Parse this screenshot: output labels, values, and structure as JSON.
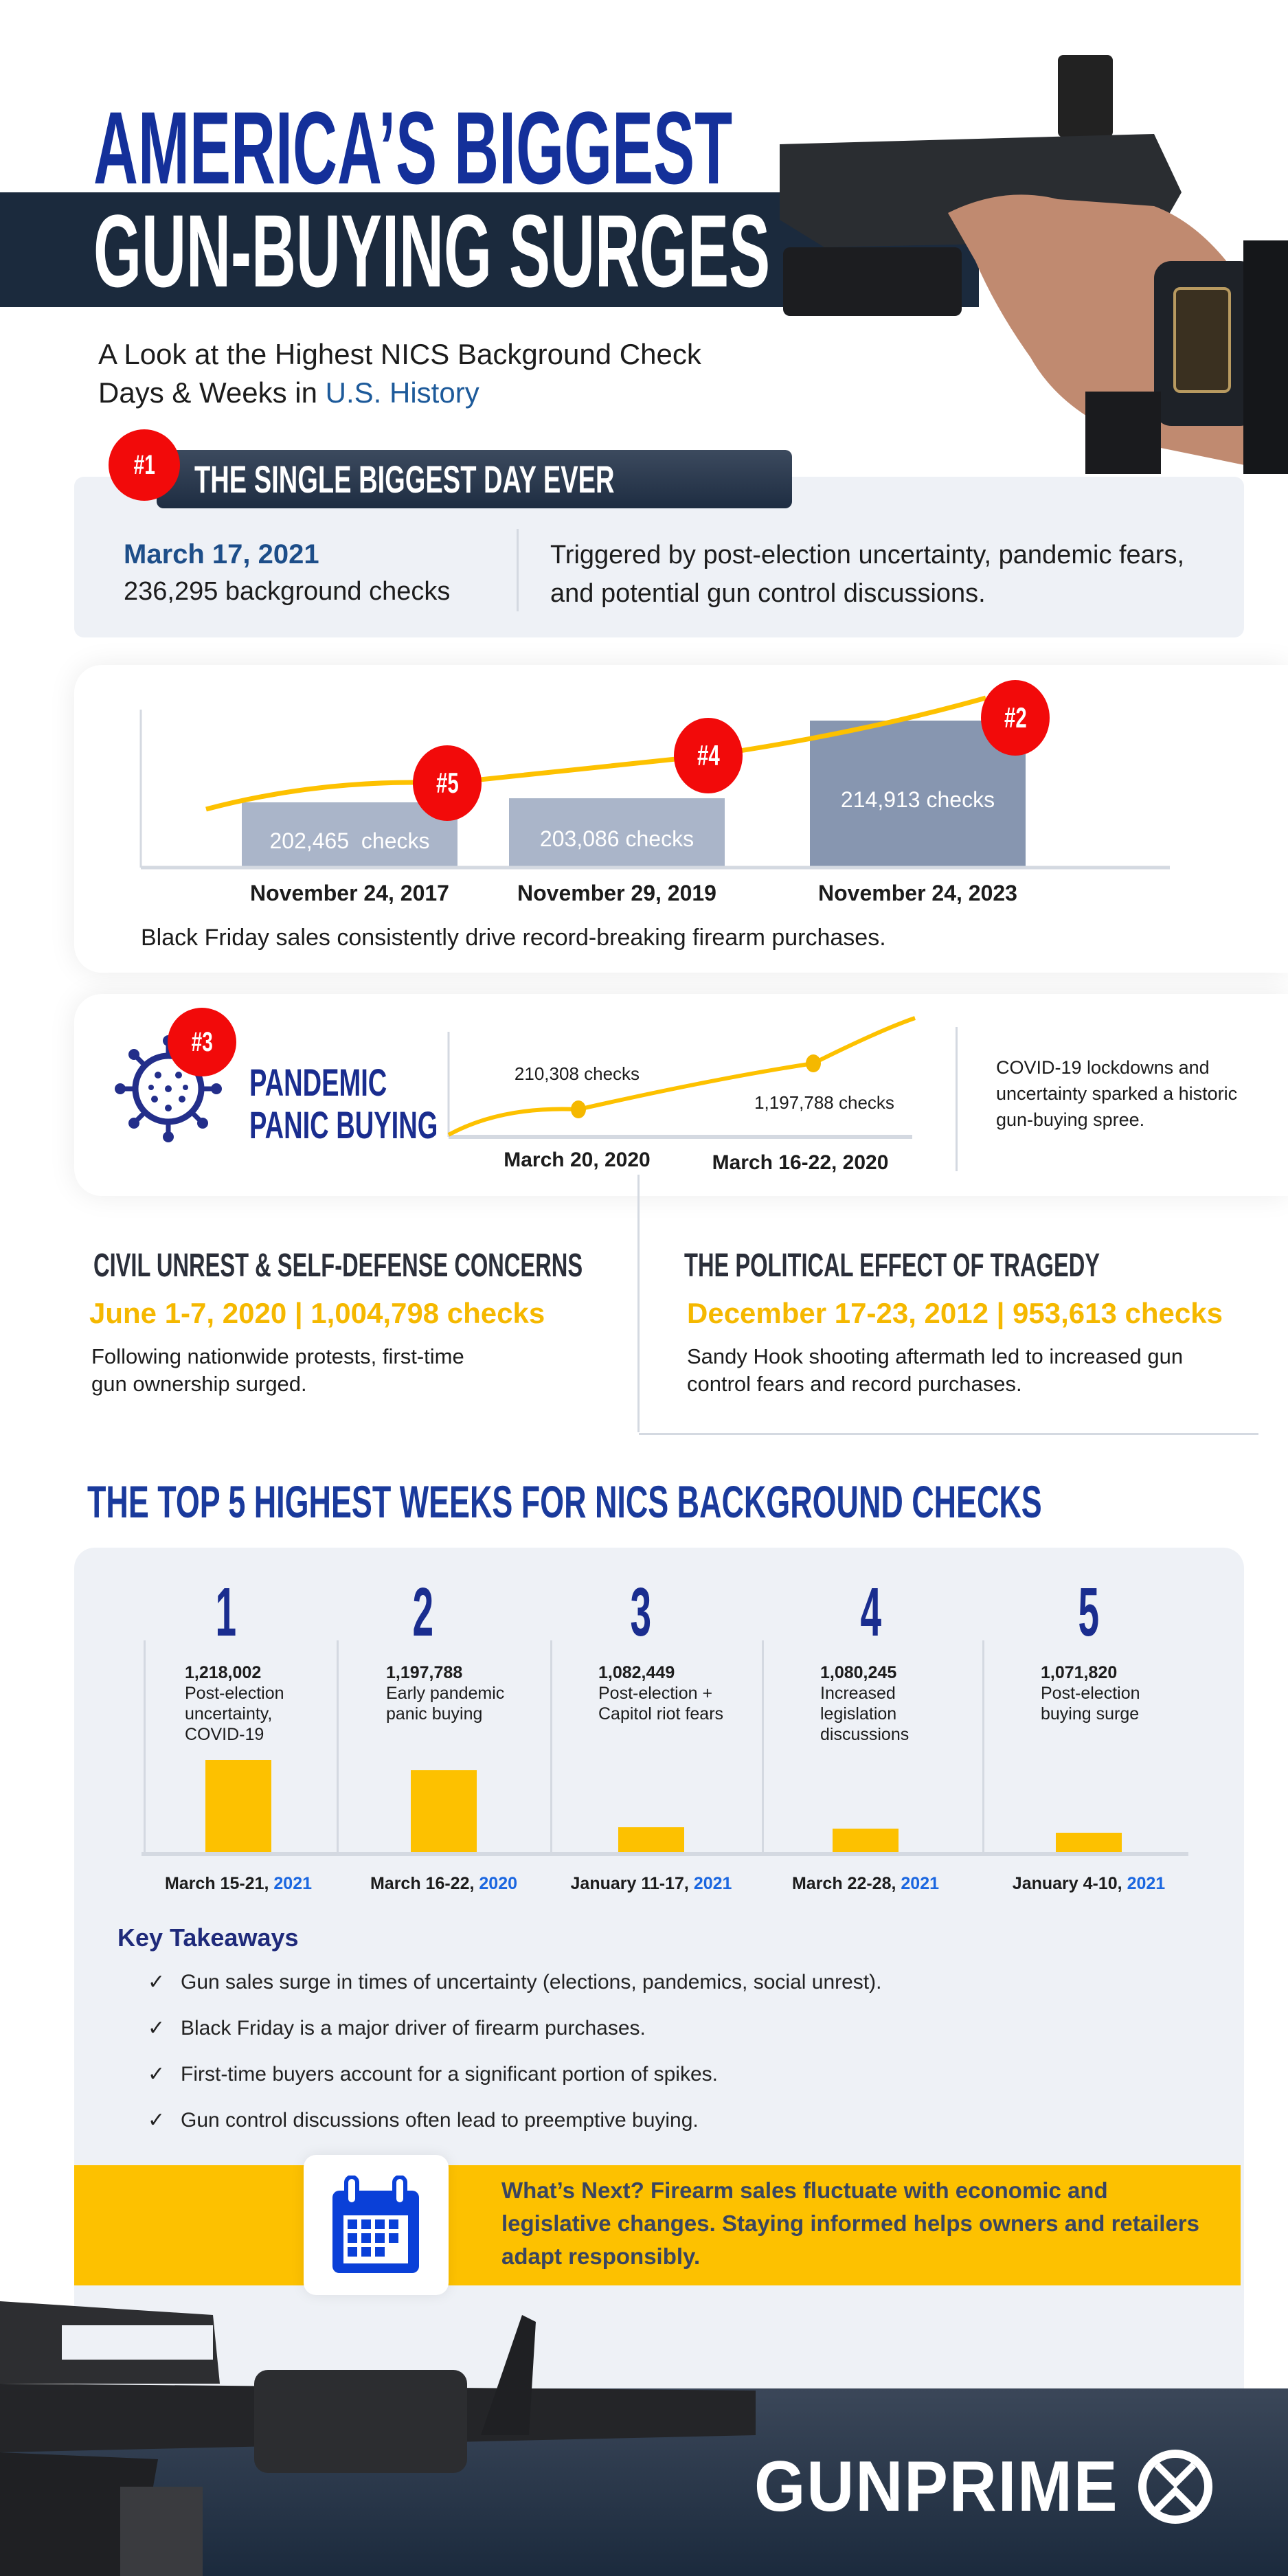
{
  "header": {
    "title_line1": "AMERICA’S BIGGEST",
    "title_line2": "GUN-BUYING SURGES",
    "subtitle_line1": "A Look at the Highest NICS Background Check",
    "subtitle_line2_prefix": "Days & Weeks in ",
    "subtitle_line2_highlight": "U.S. History"
  },
  "biggest_day": {
    "rank": "#1",
    "heading": "THE SINGLE BIGGEST DAY EVER",
    "date": "March 17, 2021",
    "checks": "236,295 background checks",
    "description": "Triggered by post-election uncertainty, pandemic fears, and potential gun control discussions."
  },
  "black_friday": {
    "bars": [
      {
        "rank": "#5",
        "label": "202,465  checks",
        "date": "November 24, 2017"
      },
      {
        "rank": "#4",
        "label": "203,086 checks",
        "date": "November 29, 2019"
      },
      {
        "rank": "#2",
        "label": "214,913 checks",
        "date": "November 24, 2023"
      }
    ],
    "caption": "Black Friday sales consistently drive record-breaking firearm purchases."
  },
  "pandemic": {
    "rank": "#3",
    "title_line1": "PANDEMIC",
    "title_line2": "PANIC BUYING",
    "point1_label": "210,308 checks",
    "point2_label": "1,197,788 checks",
    "date1": "March 20, 2020",
    "date2": "March 16-22, 2020",
    "description": "COVID-19 lockdowns and uncertainty sparked a historic gun-buying spree."
  },
  "civil_unrest": {
    "heading": "CIVIL UNREST & SELF-DEFENSE CONCERNS",
    "highlight": "June 1-7, 2020 | 1,004,798 checks",
    "text": "Following nationwide protests, first-time gun ownership surged."
  },
  "tragedy": {
    "heading": "THE POLITICAL EFFECT OF TRAGEDY",
    "highlight": "December 17-23, 2012 | 953,613 checks",
    "text": "Sandy Hook shooting aftermath led to increased gun control fears and record purchases."
  },
  "top5": {
    "heading": "THE TOP 5 HIGHEST WEEKS FOR NICS BACKGROUND CHECKS",
    "weeks": [
      {
        "rank": "1",
        "value": "1,218,002",
        "reason": "Post-election uncertainty, COVID-19",
        "dates": "March 15-21, ",
        "year": "2021"
      },
      {
        "rank": "2",
        "value": "1,197,788",
        "reason": "Early pandemic panic buying",
        "dates": "March 16-22, ",
        "year": "2020"
      },
      {
        "rank": "3",
        "value": "1,082,449",
        "reason": "Post-election + Capitol riot fears",
        "dates": "January 11-17, ",
        "year": "2021"
      },
      {
        "rank": "4",
        "value": "1,080,245",
        "reason": "Increased legislation discussions",
        "dates": "March 22-28, ",
        "year": "2021"
      },
      {
        "rank": "5",
        "value": "1,071,820",
        "reason": "Post-election buying surge",
        "dates": "January 4-10, ",
        "year": "2021"
      }
    ]
  },
  "takeaways": {
    "heading": "Key Takeaways",
    "check_icon": "✓",
    "items": [
      "Gun sales surge in times of uncertainty (elections, pandemics, social unrest).",
      "Black Friday is a major driver of firearm purchases.",
      "First-time buyers account for a significant portion of spikes.",
      "Gun control discussions often lead to preemptive buying."
    ]
  },
  "whats_next": {
    "icon": "calendar-icon",
    "text": "What’s Next? Firearm sales fluctuate with economic and legislative changes. Staying informed helps owners and retailers adapt responsibly."
  },
  "footer": {
    "brand": "GUNPRIME"
  },
  "colors": {
    "navy": "#1a2d8f",
    "dark": "#1b2a3d",
    "yellow": "#fdc100",
    "red": "#f20a0a",
    "blue": "#1a66e0"
  },
  "chart_data": [
    {
      "type": "bar",
      "categories": [
        "March 15-21, 2021",
        "March 16-22, 2020",
        "January 11-17, 2021",
        "March 22-28, 2021",
        "January 4-10, 2021"
      ],
      "values": [
        1218002,
        1197788,
        1082449,
        1080245,
        1071820
      ]
    },
    {
      "type": "bar",
      "categories": [
        "November 24, 2017",
        "November 29, 2019",
        "November 24, 2023"
      ],
      "values": [
        202465,
        203086,
        214913
      ]
    }
  ]
}
